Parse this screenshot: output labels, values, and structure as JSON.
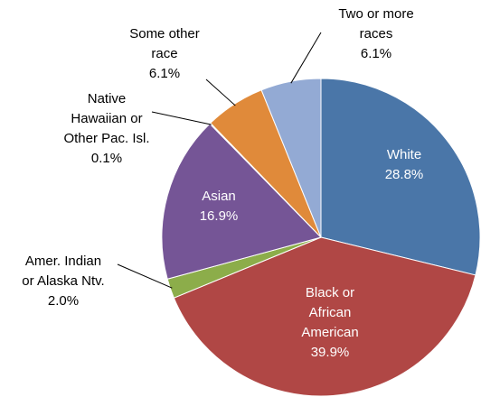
{
  "chart_data": {
    "type": "pie",
    "categories": [
      "White",
      "Black or\nAfrican\nAmerican",
      "Amer. Indian\nor Alaska Ntv.",
      "Asian",
      "Native\nHawaiian or\nOther Pac. Isl.",
      "Some other\nrace",
      "Two or more\nraces"
    ],
    "values": [
      28.8,
      39.9,
      2.0,
      16.9,
      0.1,
      6.1,
      6.1
    ],
    "value_labels": [
      "28.8%",
      "39.9%",
      "2.0%",
      "16.9%",
      "0.1%",
      "6.1%",
      "6.1%"
    ],
    "colors": [
      "#4a76a8",
      "#b04745",
      "#8cad4a",
      "#755596",
      "#4aa0b8",
      "#e08a3a",
      "#93aad4"
    ]
  }
}
